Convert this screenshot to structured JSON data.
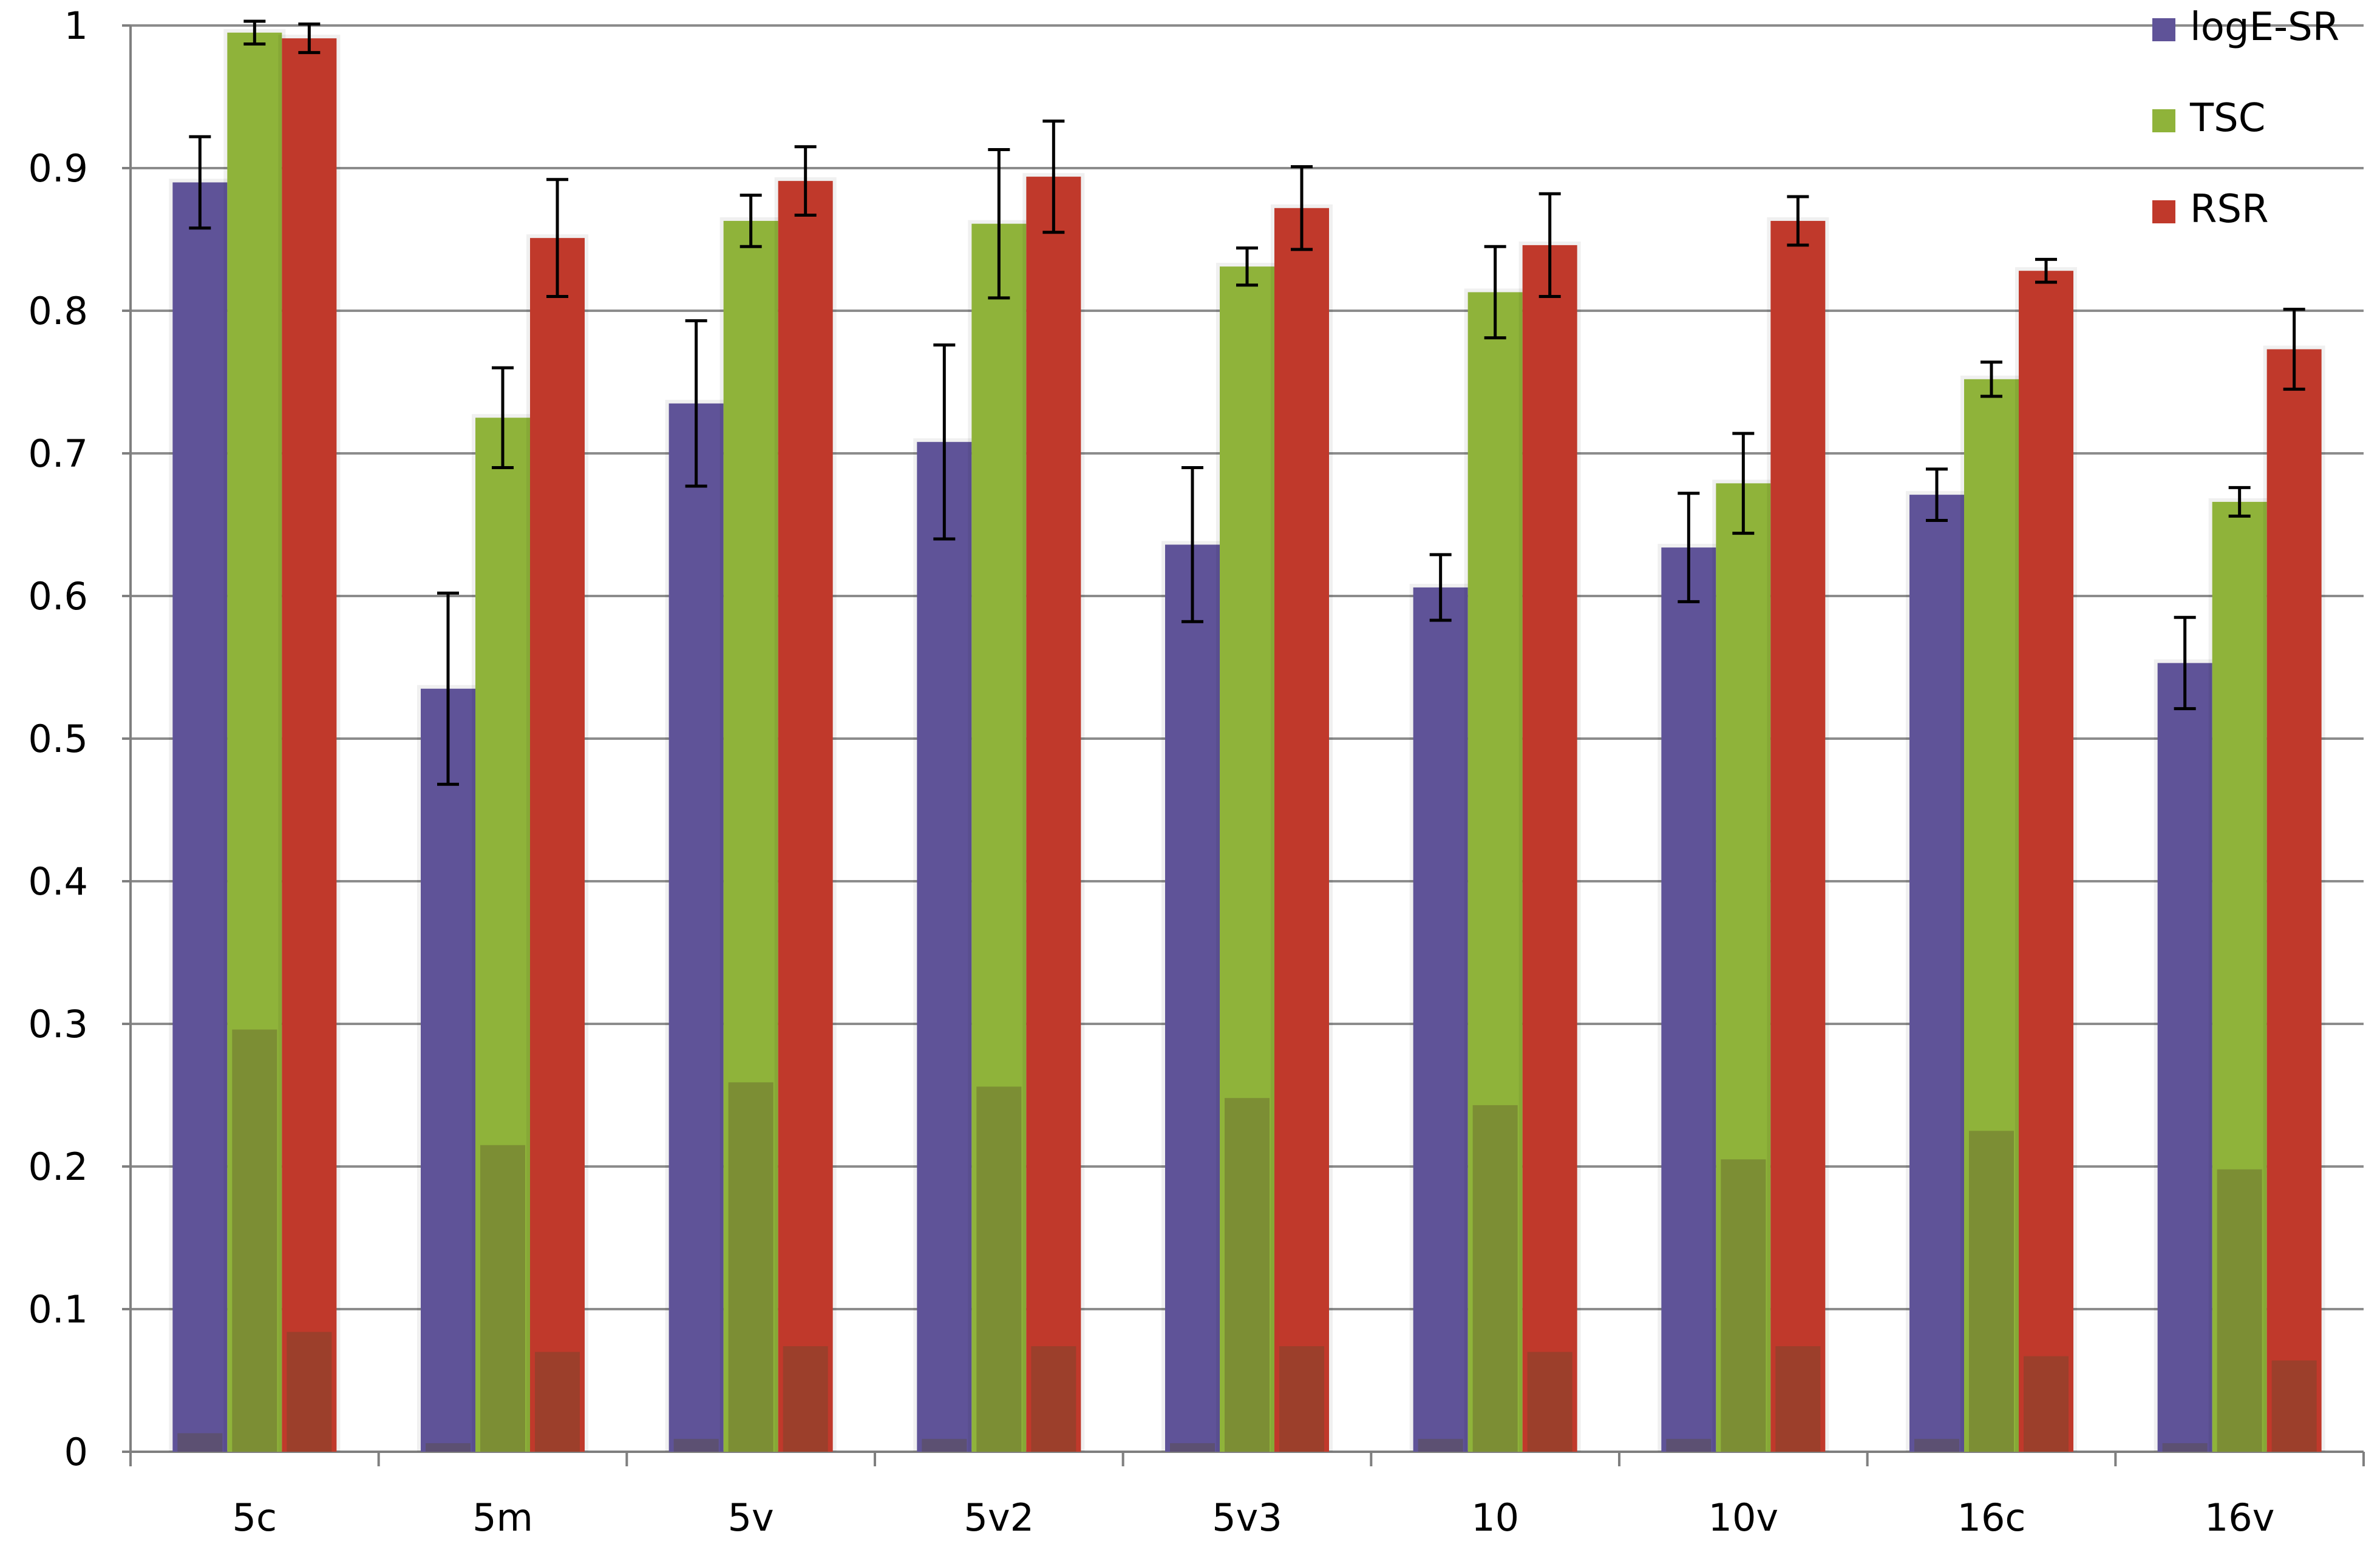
{
  "chart_data": {
    "type": "bar",
    "title": "",
    "xlabel": "",
    "ylabel": "",
    "ylim": [
      0,
      1
    ],
    "yticks": [
      "0",
      "0.1",
      "0.2",
      "0.3",
      "0.4",
      "0.5",
      "0.6",
      "0.7",
      "0.8",
      "0.9",
      "1"
    ],
    "grid": true,
    "legend_position": "top-right",
    "categories": [
      "5c",
      "5m",
      "5v",
      "5v2",
      "5v3",
      "10",
      "10v",
      "16c",
      "16v"
    ],
    "series": [
      {
        "name": "logE-SR",
        "color": "#5f5398",
        "values": [
          0.89,
          0.535,
          0.735,
          0.708,
          0.636,
          0.606,
          0.634,
          0.671,
          0.553
        ],
        "error": [
          0.032,
          0.067,
          0.058,
          0.068,
          0.054,
          0.023,
          0.038,
          0.018,
          0.032
        ],
        "shadow_values": [
          0.013,
          0.006,
          0.009,
          0.009,
          0.006,
          0.009,
          0.009,
          0.009,
          0.006
        ]
      },
      {
        "name": "TSC",
        "color": "#8fb33a",
        "values": [
          0.995,
          0.725,
          0.863,
          0.861,
          0.831,
          0.813,
          0.679,
          0.752,
          0.666
        ],
        "error": [
          0.008,
          0.035,
          0.018,
          0.052,
          0.013,
          0.032,
          0.035,
          0.012,
          0.01
        ],
        "shadow_values": [
          0.296,
          0.215,
          0.259,
          0.256,
          0.248,
          0.243,
          0.205,
          0.225,
          0.198
        ]
      },
      {
        "name": "RSR",
        "color": "#c0392b",
        "values": [
          0.991,
          0.851,
          0.891,
          0.894,
          0.872,
          0.846,
          0.863,
          0.828,
          0.773
        ],
        "error": [
          0.01,
          0.041,
          0.024,
          0.039,
          0.029,
          0.036,
          0.017,
          0.008,
          0.028
        ],
        "shadow_values": [
          0.084,
          0.07,
          0.074,
          0.074,
          0.074,
          0.07,
          0.074,
          0.067,
          0.064
        ]
      }
    ]
  }
}
